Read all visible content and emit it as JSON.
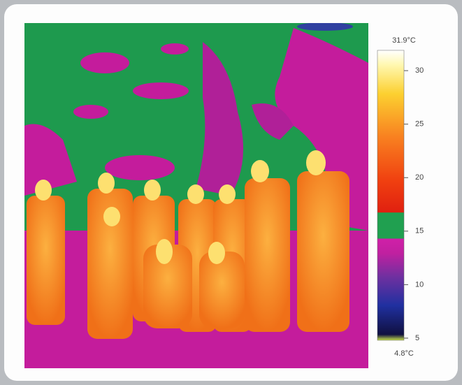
{
  "colorbar": {
    "max_label": "31.9°C",
    "min_label": "4.8°C",
    "range": [
      4.8,
      31.9
    ],
    "ticks": [
      5,
      10,
      15,
      20,
      25,
      30
    ]
  }
}
